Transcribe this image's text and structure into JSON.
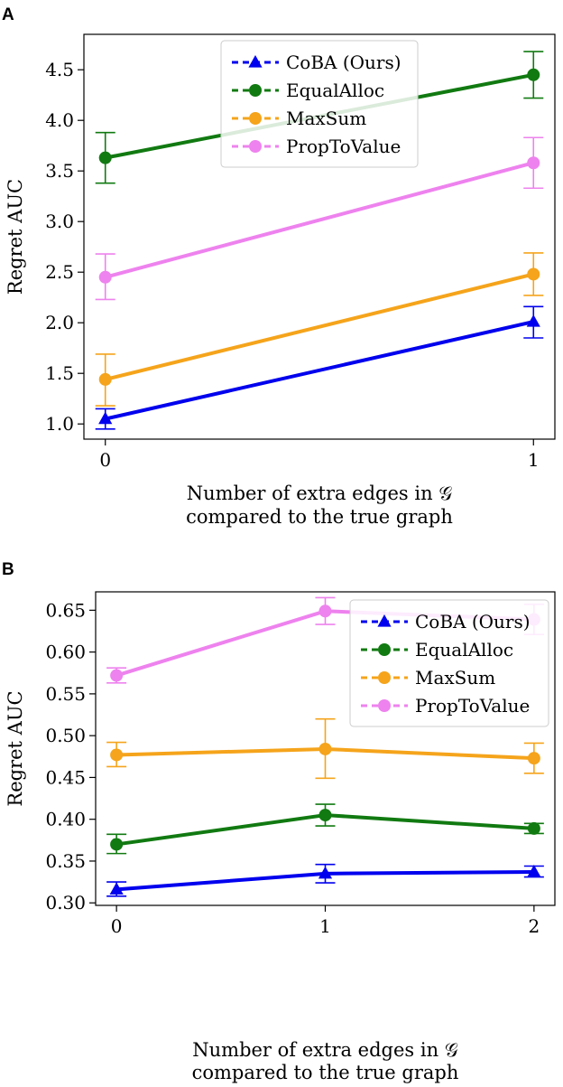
{
  "chart_data": [
    {
      "panel": "A",
      "type": "line",
      "xlabel": "Number of extra edges in 𝒢",
      "xlabel_line2": "compared to the true graph",
      "ylabel": "Regret AUC",
      "x": [
        0,
        1
      ],
      "xlim": [
        -0.05,
        1.05
      ],
      "ylim": [
        0.85,
        4.85
      ],
      "xticks": [
        0,
        1
      ],
      "xtick_labels": [
        "0",
        "1"
      ],
      "yticks": [
        1.0,
        1.5,
        2.0,
        2.5,
        3.0,
        3.5,
        4.0,
        4.5
      ],
      "ytick_labels": [
        "1.0",
        "1.5",
        "2.0",
        "2.5",
        "3.0",
        "3.5",
        "4.0",
        "4.5"
      ],
      "legend_position": "top-center",
      "series": [
        {
          "name": "CoBA (Ours)",
          "color": "#0000ee",
          "marker": "triangle",
          "values": [
            1.05,
            2.01
          ],
          "err_low": [
            0.95,
            1.85
          ],
          "err_high": [
            1.15,
            2.16
          ]
        },
        {
          "name": "EqualAlloc",
          "color": "#117a11",
          "marker": "circle",
          "values": [
            3.63,
            4.45
          ],
          "err_low": [
            3.38,
            4.22
          ],
          "err_high": [
            3.88,
            4.68
          ]
        },
        {
          "name": "MaxSum",
          "color": "#f5a41b",
          "marker": "circle",
          "values": [
            1.44,
            2.48
          ],
          "err_low": [
            1.18,
            2.27
          ],
          "err_high": [
            1.69,
            2.69
          ]
        },
        {
          "name": "PropToValue",
          "color": "#ee82ee",
          "marker": "circle",
          "values": [
            2.45,
            3.58
          ],
          "err_low": [
            2.23,
            3.33
          ],
          "err_high": [
            2.68,
            3.83
          ]
        }
      ]
    },
    {
      "panel": "B",
      "type": "line",
      "xlabel": "Number of extra edges in 𝒢",
      "xlabel_line2": "compared to the true graph",
      "ylabel": "Regret AUC",
      "x": [
        0,
        1,
        2
      ],
      "xlim": [
        -0.1,
        2.1
      ],
      "ylim": [
        0.297,
        0.672
      ],
      "xticks": [
        0,
        1,
        2
      ],
      "xtick_labels": [
        "0",
        "1",
        "2"
      ],
      "yticks": [
        0.3,
        0.35,
        0.4,
        0.45,
        0.5,
        0.55,
        0.6,
        0.65
      ],
      "ytick_labels": [
        "0.30",
        "0.35",
        "0.40",
        "0.45",
        "0.50",
        "0.55",
        "0.60",
        "0.65"
      ],
      "legend_position": "top-right",
      "series": [
        {
          "name": "CoBA (Ours)",
          "color": "#0000ee",
          "marker": "triangle",
          "values": [
            0.316,
            0.335,
            0.337
          ],
          "err_low": [
            0.308,
            0.324,
            0.331
          ],
          "err_high": [
            0.325,
            0.346,
            0.344
          ]
        },
        {
          "name": "EqualAlloc",
          "color": "#117a11",
          "marker": "circle",
          "values": [
            0.37,
            0.405,
            0.389
          ],
          "err_low": [
            0.359,
            0.392,
            0.383
          ],
          "err_high": [
            0.382,
            0.418,
            0.395
          ]
        },
        {
          "name": "MaxSum",
          "color": "#f5a41b",
          "marker": "circle",
          "values": [
            0.477,
            0.484,
            0.473
          ],
          "err_low": [
            0.463,
            0.449,
            0.455
          ],
          "err_high": [
            0.492,
            0.52,
            0.491
          ]
        },
        {
          "name": "PropToValue",
          "color": "#ee82ee",
          "marker": "circle",
          "values": [
            0.572,
            0.649,
            0.639
          ],
          "err_low": [
            0.563,
            0.633,
            0.621
          ],
          "err_high": [
            0.581,
            0.665,
            0.657
          ]
        }
      ]
    }
  ]
}
